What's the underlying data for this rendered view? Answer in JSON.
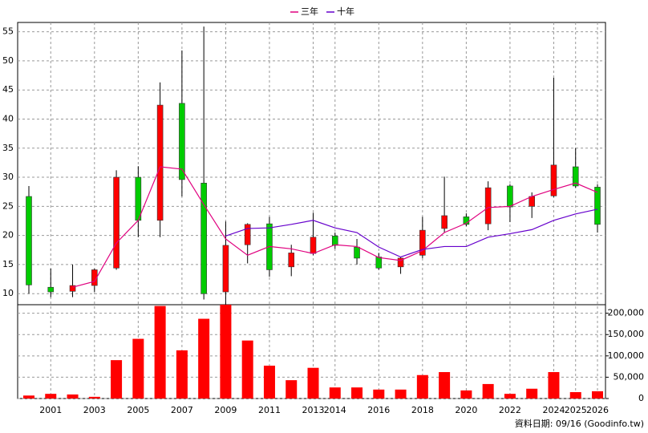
{
  "chart_data": {
    "type": "candlestick",
    "categories": [
      null,
      "2001",
      null,
      "2003",
      null,
      "2005",
      null,
      "2007",
      null,
      "2009",
      null,
      "2011",
      null,
      "2013",
      "2014",
      null,
      "2016",
      null,
      "2018",
      null,
      "2020",
      null,
      "2022",
      null,
      "2024",
      "2025",
      "2026"
    ],
    "open": [
      26.7,
      11.1,
      10.4,
      11.4,
      14.4,
      30.0,
      22.6,
      42.7,
      29.0,
      10.3,
      18.4,
      22.0,
      14.6,
      16.9,
      19.9,
      18.0,
      16.3,
      14.6,
      16.6,
      21.2,
      23.2,
      22.0,
      28.5,
      25.0,
      26.8,
      31.8,
      28.3
    ],
    "close": [
      11.5,
      10.3,
      11.4,
      14.1,
      30.0,
      22.6,
      42.4,
      29.6,
      10.0,
      18.3,
      21.9,
      14.1,
      17.0,
      19.7,
      18.3,
      16.1,
      14.4,
      16.1,
      20.9,
      23.4,
      21.9,
      28.2,
      24.9,
      26.7,
      32.1,
      28.5,
      21.9
    ],
    "high": [
      28.5,
      14.3,
      15.0,
      14.3,
      31.2,
      31.9,
      46.3,
      51.8,
      55.9,
      22.4,
      22.1,
      23.2,
      18.4,
      23.9,
      20.5,
      19.4,
      17.0,
      16.3,
      23.2,
      30.1,
      23.8,
      29.3,
      28.8,
      27.4,
      47.1,
      35.0,
      28.8
    ],
    "low": [
      10.0,
      9.4,
      9.4,
      10.3,
      14.1,
      19.7,
      19.7,
      26.7,
      9.0,
      8.1,
      15.2,
      12.9,
      13.0,
      16.6,
      17.7,
      15.0,
      14.1,
      13.4,
      16.1,
      20.5,
      21.6,
      20.9,
      22.3,
      23.0,
      26.6,
      28.2,
      20.5
    ],
    "up_color": "#ff0000",
    "down_color": "#00cc00",
    "series": [
      {
        "name": "三年",
        "color": "#e0007f",
        "values": [
          null,
          null,
          11.1,
          12.1,
          18.7,
          22.6,
          31.8,
          31.4,
          25.3,
          19.4,
          16.6,
          18.1,
          17.7,
          16.9,
          18.4,
          18.1,
          16.2,
          15.7,
          17.4,
          20.5,
          22.1,
          24.8,
          25.0,
          26.7,
          27.9,
          29.0,
          27.4
        ]
      },
      {
        "name": "十年",
        "color": "#6600cc",
        "values": [
          null,
          null,
          null,
          null,
          null,
          null,
          null,
          null,
          null,
          19.9,
          21.2,
          21.3,
          21.9,
          22.6,
          21.3,
          20.5,
          18.0,
          16.3,
          17.6,
          18.1,
          18.1,
          19.7,
          20.3,
          21.0,
          22.6,
          23.7,
          24.5
        ]
      }
    ],
    "ylim": [
      8.1,
      56.6
    ],
    "yticks": [
      10,
      15,
      20,
      25,
      30,
      35,
      40,
      45,
      50,
      55
    ],
    "volume": {
      "color": "#ff0000",
      "values": [
        7000,
        11000,
        9500,
        4000,
        90000,
        140000,
        217000,
        113000,
        187000,
        220000,
        136000,
        77000,
        43000,
        72000,
        26000,
        26000,
        21000,
        21000,
        55000,
        62000,
        19000,
        34000,
        11000,
        23000,
        62000,
        15000,
        17000
      ],
      "y2lim": [
        0,
        220000
      ],
      "y2ticks": [
        0,
        {
          "value": 50000,
          "label": "50,000"
        },
        {
          "value": 100000,
          "label": "100,000"
        },
        {
          "value": 150000,
          "label": "150,000"
        },
        {
          "value": 200000,
          "label": "200,000"
        }
      ]
    },
    "grid": true,
    "legend": "top",
    "footnote": "資料日期: 09/16 (Goodinfo.tw)"
  }
}
